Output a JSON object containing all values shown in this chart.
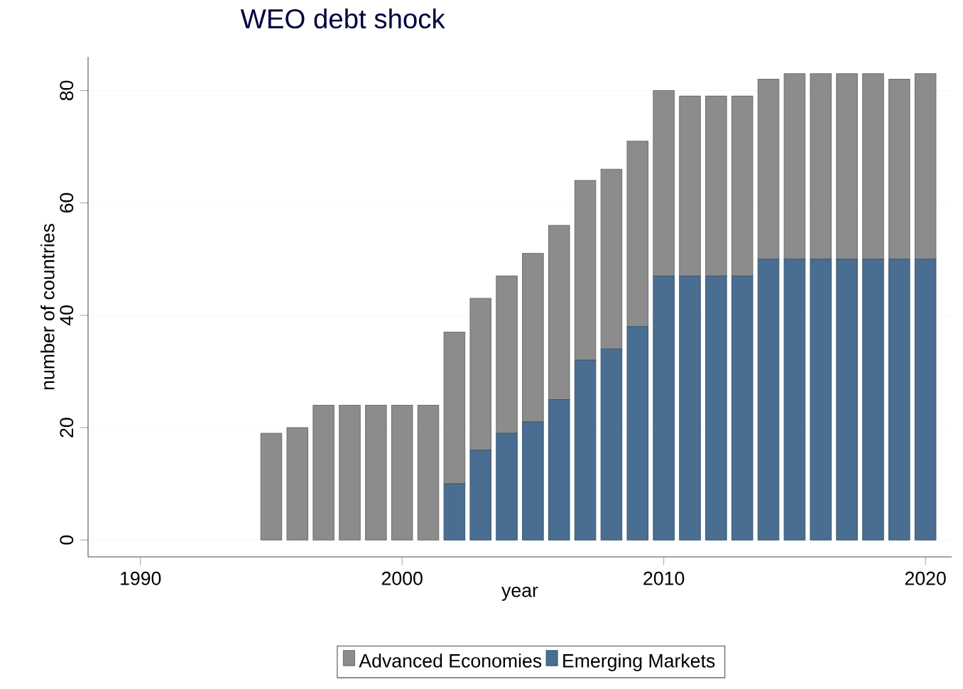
{
  "chart_data": {
    "type": "bar",
    "title": "WEO debt shock",
    "xlabel": "year",
    "ylabel": "number of countries",
    "x": [
      1995,
      1996,
      1997,
      1998,
      1999,
      2000,
      2001,
      2002,
      2003,
      2004,
      2005,
      2006,
      2007,
      2008,
      2009,
      2010,
      2011,
      2012,
      2013,
      2014,
      2015,
      2016,
      2017,
      2018,
      2019,
      2020
    ],
    "series": [
      {
        "name": "Emerging Markets",
        "color": "#4a6e91",
        "values": [
          0,
          0,
          0,
          0,
          0,
          0,
          0,
          10,
          16,
          19,
          21,
          25,
          32,
          34,
          38,
          47,
          47,
          47,
          47,
          50,
          50,
          50,
          50,
          50,
          50,
          50
        ]
      },
      {
        "name": "Advanced Economies",
        "color": "#8c8c8c",
        "values": [
          19,
          20,
          24,
          24,
          24,
          24,
          24,
          27,
          27,
          28,
          30,
          31,
          32,
          32,
          33,
          33,
          32,
          32,
          32,
          32,
          33,
          33,
          33,
          33,
          32,
          33
        ]
      }
    ],
    "stacked": true,
    "xlim": [
      1988,
      2021
    ],
    "ylim": [
      -3,
      86
    ],
    "xticks": [
      1990,
      2000,
      2010,
      2020
    ],
    "yticks": [
      0,
      20,
      40,
      60,
      80
    ],
    "grid": "y",
    "legend": "bottom"
  }
}
